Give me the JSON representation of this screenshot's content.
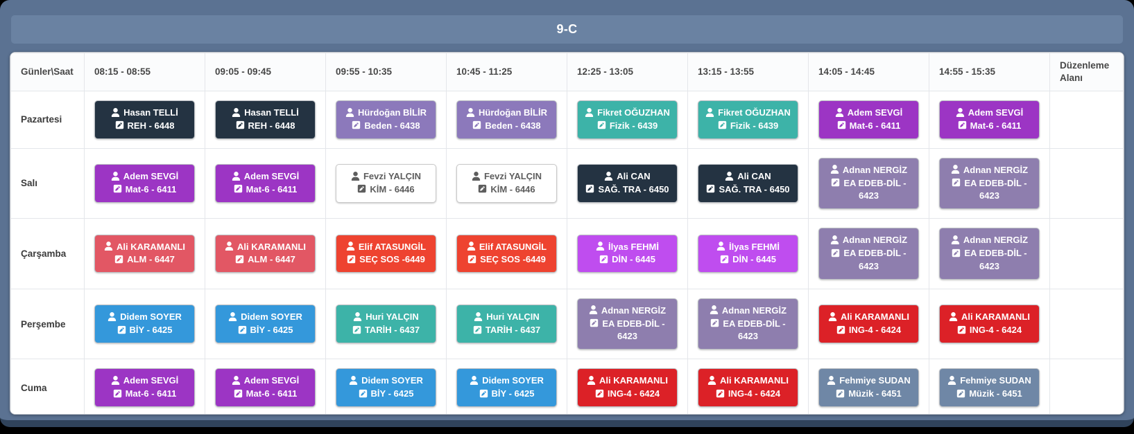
{
  "title": "9-C",
  "table": {
    "corner_header": "Günler\\Saat",
    "time_headers": [
      "08:15 - 08:55",
      "09:05 - 09:45",
      "09:55 - 10:35",
      "10:45 - 11:25",
      "12:25 - 13:05",
      "13:15 - 13:55",
      "14:05 - 14:45",
      "14:55 - 15:35"
    ],
    "edit_header": "Düzenleme Alanı",
    "days": [
      {
        "name": "Pazartesi",
        "lessons": [
          {
            "teacher": "Hasan TELLİ",
            "course": "REH - 6448",
            "color": "navy"
          },
          {
            "teacher": "Hasan TELLİ",
            "course": "REH - 6448",
            "color": "navy"
          },
          {
            "teacher": "Hürdoğan BİLİR",
            "course": "Beden - 6438",
            "color": "soft_purple"
          },
          {
            "teacher": "Hürdoğan BİLİR",
            "course": "Beden - 6438",
            "color": "soft_purple"
          },
          {
            "teacher": "Fikret OĞUZHAN",
            "course": "Fizik - 6439",
            "color": "teal"
          },
          {
            "teacher": "Fikret OĞUZHAN",
            "course": "Fizik - 6439",
            "color": "teal"
          },
          {
            "teacher": "Adem SEVGİ",
            "course": "Mat-6 - 6411",
            "color": "purple"
          },
          {
            "teacher": "Adem SEVGİ",
            "course": "Mat-6 - 6411",
            "color": "purple"
          }
        ]
      },
      {
        "name": "Salı",
        "lessons": [
          {
            "teacher": "Adem SEVGİ",
            "course": "Mat-6 - 6411",
            "color": "purple"
          },
          {
            "teacher": "Adem SEVGİ",
            "course": "Mat-6 - 6411",
            "color": "purple"
          },
          {
            "teacher": "Fevzi YALÇIN",
            "course": "KİM - 6446",
            "color": "white"
          },
          {
            "teacher": "Fevzi YALÇIN",
            "course": "KİM - 6446",
            "color": "white"
          },
          {
            "teacher": "Ali CAN",
            "course": "SAĞ. TRA - 6450",
            "color": "navy"
          },
          {
            "teacher": "Ali CAN",
            "course": "SAĞ. TRA - 6450",
            "color": "navy"
          },
          {
            "teacher": "Adnan NERGİZ",
            "course": "EA EDEB-DİL - 6423",
            "color": "lavender"
          },
          {
            "teacher": "Adnan NERGİZ",
            "course": "EA EDEB-DİL - 6423",
            "color": "lavender"
          }
        ]
      },
      {
        "name": "Çarşamba",
        "lessons": [
          {
            "teacher": "Ali KARAMANLI",
            "course": "ALM - 6447",
            "color": "rose"
          },
          {
            "teacher": "Ali KARAMANLI",
            "course": "ALM - 6447",
            "color": "rose"
          },
          {
            "teacher": "Elif ATASUNGİL",
            "course": "SEÇ SOS -6449",
            "color": "orange_red"
          },
          {
            "teacher": "Elif ATASUNGİL",
            "course": "SEÇ SOS -6449",
            "color": "orange_red"
          },
          {
            "teacher": "İlyas FEHMİ",
            "course": "DİN - 6445",
            "color": "violet"
          },
          {
            "teacher": "İlyas FEHMİ",
            "course": "DİN - 6445",
            "color": "violet"
          },
          {
            "teacher": "Adnan NERGİZ",
            "course": "EA EDEB-DİL - 6423",
            "color": "lavender"
          },
          {
            "teacher": "Adnan NERGİZ",
            "course": "EA EDEB-DİL - 6423",
            "color": "lavender"
          }
        ]
      },
      {
        "name": "Perşembe",
        "lessons": [
          {
            "teacher": "Didem SOYER",
            "course": "BİY - 6425",
            "color": "blue"
          },
          {
            "teacher": "Didem SOYER",
            "course": "BİY - 6425",
            "color": "blue"
          },
          {
            "teacher": "Huri YALÇIN",
            "course": "TARİH - 6437",
            "color": "teal"
          },
          {
            "teacher": "Huri YALÇIN",
            "course": "TARİH - 6437",
            "color": "teal"
          },
          {
            "teacher": "Adnan NERGİZ",
            "course": "EA EDEB-DİL - 6423",
            "color": "lavender"
          },
          {
            "teacher": "Adnan NERGİZ",
            "course": "EA EDEB-DİL - 6423",
            "color": "lavender"
          },
          {
            "teacher": "Ali KARAMANLI",
            "course": "ING-4 - 6424",
            "color": "red"
          },
          {
            "teacher": "Ali KARAMANLI",
            "course": "ING-4 - 6424",
            "color": "red"
          }
        ]
      },
      {
        "name": "Cuma",
        "lessons": [
          {
            "teacher": "Adem SEVGİ",
            "course": "Mat-6 - 6411",
            "color": "purple"
          },
          {
            "teacher": "Adem SEVGİ",
            "course": "Mat-6 - 6411",
            "color": "purple"
          },
          {
            "teacher": "Didem SOYER",
            "course": "BİY - 6425",
            "color": "blue"
          },
          {
            "teacher": "Didem SOYER",
            "course": "BİY - 6425",
            "color": "blue"
          },
          {
            "teacher": "Ali KARAMANLI",
            "course": "ING-4 - 6424",
            "color": "red"
          },
          {
            "teacher": "Ali KARAMANLI",
            "course": "ING-4 - 6424",
            "color": "red"
          },
          {
            "teacher": "Fehmiye SUDAN",
            "course": "Müzik - 6451",
            "color": "slate"
          },
          {
            "teacher": "Fehmiye SUDAN",
            "course": "Müzik - 6451",
            "color": "slate"
          }
        ]
      }
    ]
  },
  "colors": {
    "navy": "#243342",
    "soft_purple": "#8c79bb",
    "teal": "#3db3a8",
    "purple": "#9c35c4",
    "white": "#ffffff",
    "lavender": "#8e7eae",
    "rose": "#e25764",
    "orange_red": "#ee4330",
    "violet": "#bf4def",
    "blue": "#3498db",
    "red": "#dc2127",
    "slate": "#6f87a6"
  },
  "text_colors": {
    "default": "#ffffff",
    "white": "#5d5d5d"
  }
}
